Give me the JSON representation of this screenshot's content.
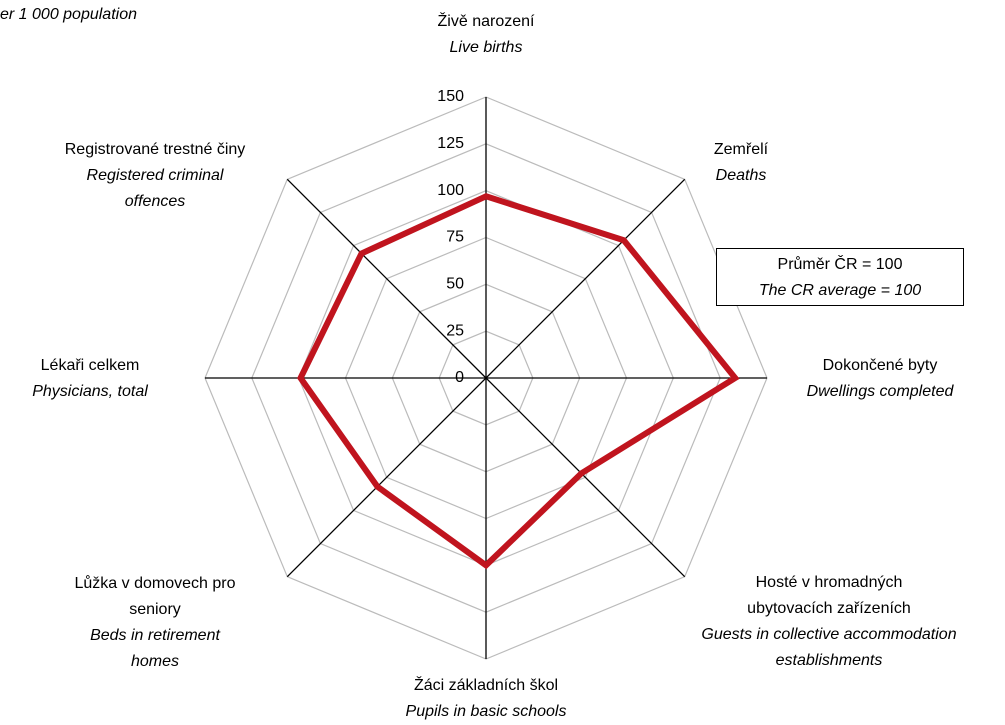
{
  "chart_data": {
    "type": "radar",
    "subtitle": "er 1 000 population",
    "categories": [
      "Živě narození",
      "Zemřelí",
      "Dokončené byty",
      "Hosté v hromadných ubytovacích zařízeních",
      "Žáci základních škol",
      "Lůžka v domovech pro seniory",
      "Lékaři celkem",
      "Registrované trestné činy"
    ],
    "categories_en": [
      "Live births",
      "Deaths",
      "Dwellings completed",
      "Guests in collective accommodation establishments",
      "Pupils in basic schools",
      "Beds in retirement homes",
      "Physicians, total",
      "Registered criminal offences"
    ],
    "values": [
      97,
      104,
      133,
      72,
      100,
      82,
      99,
      94
    ],
    "color": "#c0141e",
    "ylim": [
      0,
      150
    ],
    "yticks": [
      0,
      25,
      50,
      75,
      100,
      125,
      150
    ],
    "grid": true,
    "annotations": [
      "Průměr ČR = 100",
      "The CR average = 100"
    ]
  }
}
